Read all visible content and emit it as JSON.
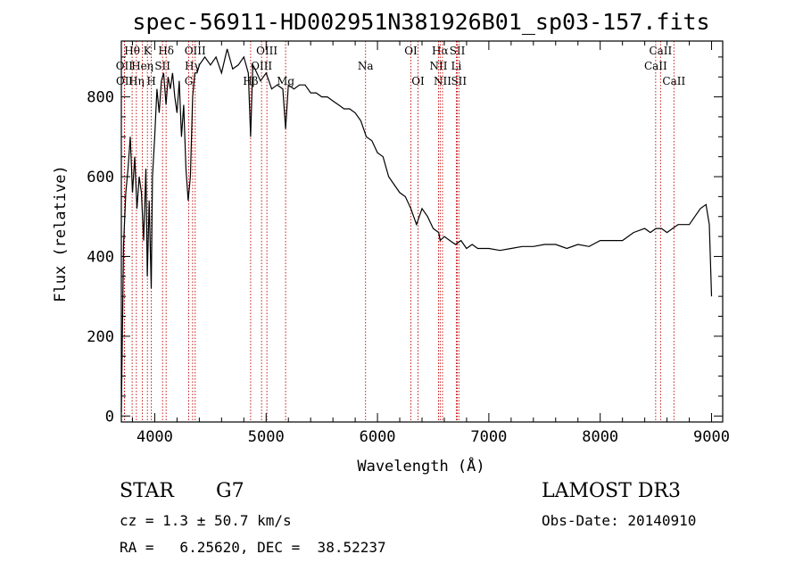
{
  "chart_data": {
    "type": "line",
    "title": "spec-56911-HD002951N381926B01_sp03-157.fits",
    "xlabel": "Wavelength (Å)",
    "ylabel": "Flux (relative)",
    "xlim": [
      3700,
      9100
    ],
    "ylim": [
      -15,
      940
    ],
    "xticks": [
      4000,
      5000,
      6000,
      7000,
      8000,
      9000
    ],
    "yticks": [
      0,
      200,
      400,
      600,
      800
    ],
    "x": [
      3700,
      3720,
      3740,
      3760,
      3780,
      3800,
      3820,
      3840,
      3860,
      3880,
      3900,
      3920,
      3933,
      3950,
      3968,
      3980,
      4000,
      4020,
      4040,
      4060,
      4080,
      4101,
      4120,
      4140,
      4160,
      4180,
      4200,
      4220,
      4240,
      4260,
      4280,
      4300,
      4320,
      4340,
      4360,
      4380,
      4400,
      4450,
      4500,
      4550,
      4600,
      4650,
      4700,
      4750,
      4800,
      4840,
      4861,
      4880,
      4900,
      4950,
      5000,
      5050,
      5100,
      5150,
      5175,
      5200,
      5250,
      5300,
      5350,
      5400,
      5450,
      5500,
      5550,
      5600,
      5650,
      5700,
      5750,
      5800,
      5850,
      5900,
      5950,
      6000,
      6050,
      6100,
      6150,
      6200,
      6250,
      6300,
      6350,
      6400,
      6450,
      6500,
      6550,
      6563,
      6600,
      6650,
      6700,
      6750,
      6800,
      6850,
      6900,
      7000,
      7100,
      7200,
      7300,
      7400,
      7500,
      7600,
      7700,
      7800,
      7900,
      8000,
      8100,
      8200,
      8300,
      8400,
      8450,
      8500,
      8550,
      8600,
      8650,
      8700,
      8750,
      8800,
      8850,
      8900,
      8950,
      8980,
      9000
    ],
    "series": [
      {
        "values": [
          10,
          430,
          560,
          620,
          700,
          560,
          650,
          520,
          600,
          560,
          440,
          620,
          350,
          540,
          320,
          600,
          700,
          820,
          760,
          840,
          860,
          780,
          850,
          820,
          860,
          800,
          760,
          840,
          700,
          780,
          620,
          540,
          600,
          800,
          860,
          860,
          880,
          900,
          880,
          900,
          860,
          920,
          870,
          880,
          900,
          860,
          700,
          880,
          870,
          840,
          860,
          820,
          830,
          820,
          720,
          830,
          820,
          830,
          830,
          810,
          810,
          800,
          800,
          790,
          780,
          770,
          770,
          760,
          740,
          700,
          690,
          660,
          650,
          600,
          580,
          560,
          550,
          520,
          480,
          520,
          500,
          470,
          460,
          440,
          450,
          440,
          430,
          440,
          420,
          430,
          420,
          420,
          415,
          420,
          425,
          425,
          430,
          430,
          420,
          430,
          425,
          440,
          440,
          440,
          460,
          470,
          460,
          470,
          470,
          460,
          470,
          480,
          480,
          480,
          500,
          520,
          530,
          480,
          300
        ]
      }
    ],
    "lines": [
      {
        "label": "Hθ",
        "x": 3797,
        "row": 1
      },
      {
        "label": "OII",
        "x": 3727,
        "row": 2
      },
      {
        "label": "OII",
        "x": 3729,
        "row": 3
      },
      {
        "label": "K",
        "x": 3934,
        "row": 1
      },
      {
        "label": "Heη",
        "x": 3889,
        "row": 2
      },
      {
        "label": "Hη",
        "x": 3835,
        "row": 3
      },
      {
        "label": "Hδ",
        "x": 4102,
        "row": 1
      },
      {
        "label": "SII",
        "x": 4070,
        "row": 2
      },
      {
        "label": "H",
        "x": 3969,
        "row": 3
      },
      {
        "label": "OIII",
        "x": 4363,
        "row": 1
      },
      {
        "label": "Hγ",
        "x": 4340,
        "row": 2
      },
      {
        "label": "G",
        "x": 4305,
        "row": 3
      },
      {
        "label": "OIII",
        "x": 5007,
        "row": 1
      },
      {
        "label": "OIII",
        "x": 4959,
        "row": 2
      },
      {
        "label": "Hβ",
        "x": 4861,
        "row": 4
      },
      {
        "label": "Mg",
        "x": 5175,
        "row": 4
      },
      {
        "label": "Na",
        "x": 5893,
        "row": 2
      },
      {
        "label": "OI",
        "x": 6300,
        "row": 1
      },
      {
        "label": "OI",
        "x": 6364,
        "row": 3
      },
      {
        "label": "Hα",
        "x": 6563,
        "row": 1
      },
      {
        "label": "SII",
        "x": 6717,
        "row": 1
      },
      {
        "label": "NII",
        "x": 6548,
        "row": 2
      },
      {
        "label": "Li",
        "x": 6708,
        "row": 2
      },
      {
        "label": "NII",
        "x": 6584,
        "row": 3
      },
      {
        "label": "SII",
        "x": 6731,
        "row": 3
      },
      {
        "label": "CaII",
        "x": 8542,
        "row": 1
      },
      {
        "label": "CaII",
        "x": 8498,
        "row": 2
      },
      {
        "label": "CaII",
        "x": 8662,
        "row": 3
      }
    ]
  },
  "info": {
    "object_class": "STAR",
    "subclass": "G7",
    "survey": "LAMOST DR3",
    "cz": "cz = 1.3 ± 50.7 km/s",
    "obs_date": "Obs-Date: 20140910",
    "coords": "RA =   6.25620, DEC =  38.52237"
  },
  "colors": {
    "spectrum": "#000000",
    "line_markers": "#c00000",
    "background": "#ffffff"
  }
}
